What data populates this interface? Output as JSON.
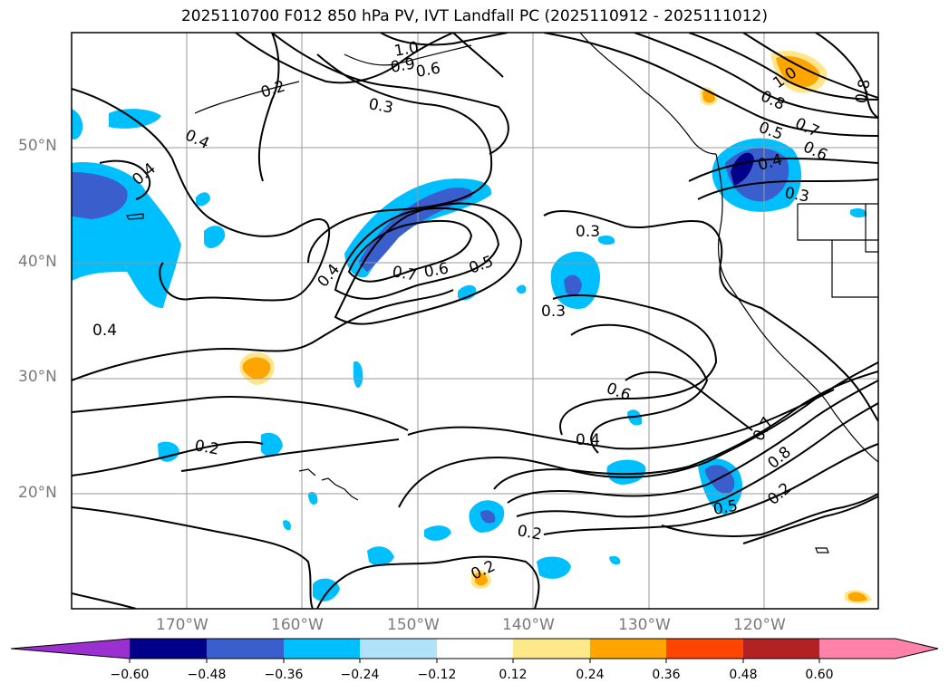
{
  "title": "2025110700 F012 850 hPa PV, IVT Landfall PC (2025110912 - 2025111012)",
  "map": {
    "lat_labels": [
      "50°N",
      "40°N",
      "30°N",
      "20°N"
    ],
    "lon_labels": [
      "170°W",
      "160°W",
      "150°W",
      "140°W",
      "130°W",
      "120°W"
    ],
    "contour_labels": [
      "0.2",
      "1.0",
      "0.9",
      "0.6",
      "0.3",
      "0.4",
      "0.4",
      "0.7",
      "0.6",
      "0.5",
      "0.4",
      "0.3",
      "0.4",
      "0.3",
      "0.6",
      "0.4",
      "0.2",
      "0.2",
      "0.2",
      "0.7",
      "0.8",
      "0.2",
      "0.5",
      "0.8",
      "1.0",
      "0.8",
      "0.5",
      "0.7",
      "0.6",
      "0.4",
      "0.3"
    ],
    "shading_colors": {
      "neg_1": "#a8dffa",
      "neg_2": "#00bfff",
      "neg_3": "#3a5fcd",
      "neg_4": "#00008b",
      "pos_1": "#ffe68a",
      "pos_2": "#ffa500"
    }
  },
  "colorbar": {
    "tick_labels": [
      "−0.60",
      "−0.48",
      "−0.36",
      "−0.24",
      "−0.12",
      "0.12",
      "0.24",
      "0.36",
      "0.48",
      "0.60"
    ],
    "colors": [
      "#9b30d0",
      "#00008b",
      "#3a5fcd",
      "#00bfff",
      "#b0e2fb",
      "#ffffff",
      "#fde98a",
      "#ffa500",
      "#ff4500",
      "#b22222",
      "#ff82ab"
    ]
  }
}
